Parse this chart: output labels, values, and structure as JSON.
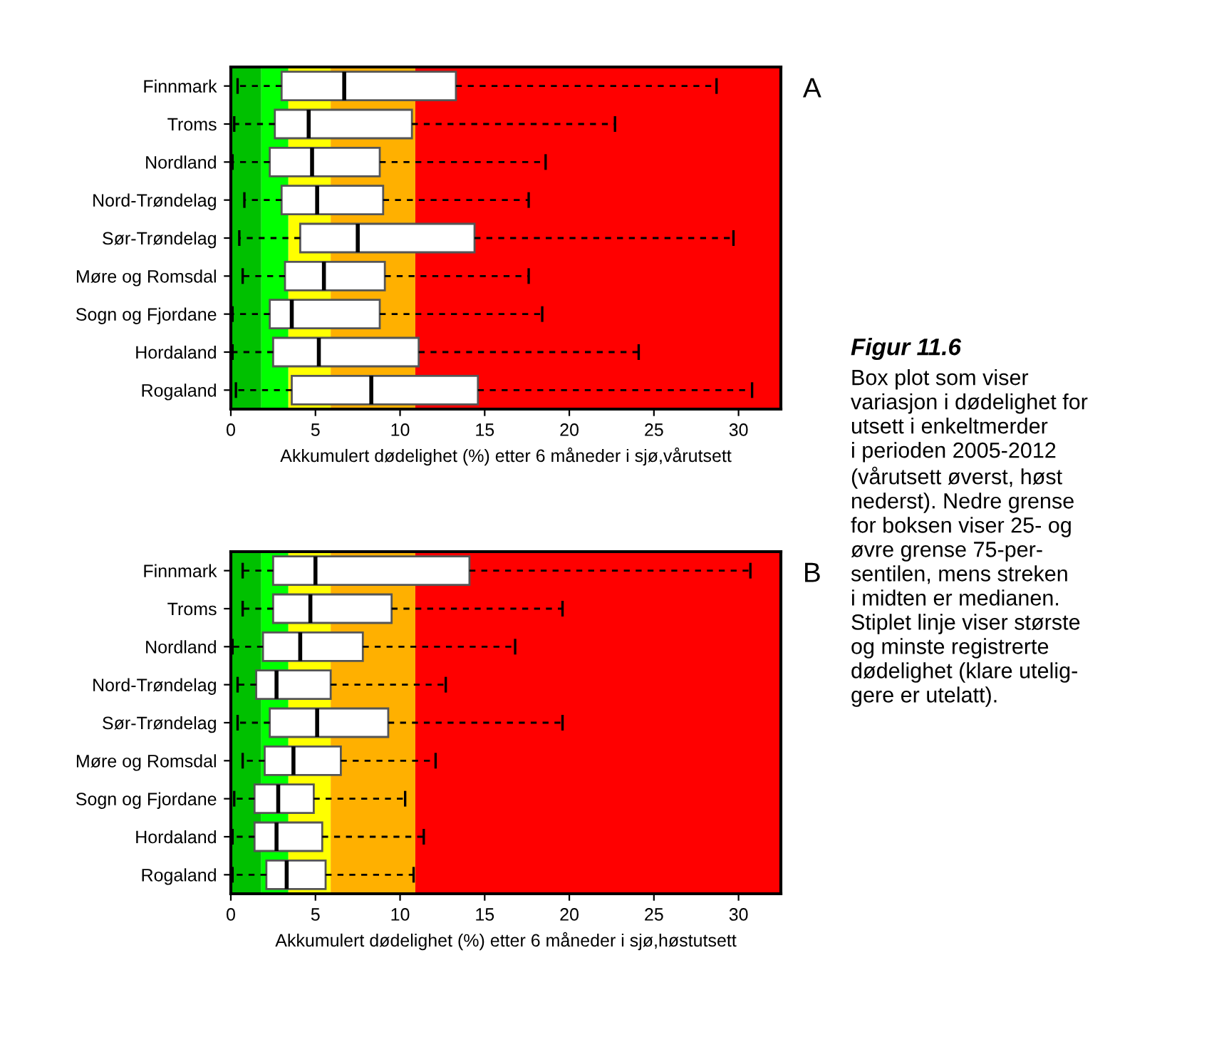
{
  "chart_data": [
    {
      "type": "box",
      "orientation": "horizontal",
      "xlabel": "Akkumulert dødelighet (%) etter 6 måneder i sjø,vårutsett",
      "categories": [
        "Finnmark",
        "Troms",
        "Nordland",
        "Nord-Trøndelag",
        "Sør-Trøndelag",
        "Møre og Romsdal",
        "Sogn og Fjordane",
        "Hordaland",
        "Rogaland"
      ],
      "boxes": [
        {
          "low": 0.4,
          "q1": 3.0,
          "median": 6.7,
          "q3": 13.3,
          "high": 28.7
        },
        {
          "low": 0.2,
          "q1": 2.6,
          "median": 4.6,
          "q3": 10.7,
          "high": 22.7
        },
        {
          "low": 0.1,
          "q1": 2.3,
          "median": 4.8,
          "q3": 8.8,
          "high": 18.6
        },
        {
          "low": 0.8,
          "q1": 3.0,
          "median": 5.1,
          "q3": 9.0,
          "high": 17.6
        },
        {
          "low": 0.5,
          "q1": 4.1,
          "median": 7.5,
          "q3": 14.4,
          "high": 29.7
        },
        {
          "low": 0.7,
          "q1": 3.2,
          "median": 5.5,
          "q3": 9.1,
          "high": 17.6
        },
        {
          "low": 0.1,
          "q1": 2.3,
          "median": 3.6,
          "q3": 8.8,
          "high": 18.4
        },
        {
          "low": 0.1,
          "q1": 2.5,
          "median": 5.2,
          "q3": 11.1,
          "high": 24.1
        },
        {
          "low": 0.3,
          "q1": 3.6,
          "median": 8.3,
          "q3": 14.6,
          "high": 30.8
        }
      ],
      "xlim": [
        0,
        32.5
      ],
      "xticks": [
        0,
        5,
        10,
        15,
        20,
        25,
        30
      ],
      "bands": [
        {
          "axis": "x",
          "from": 0,
          "to": 1.8,
          "color": "#00c000"
        },
        {
          "axis": "x",
          "from": 1.8,
          "to": 3.4,
          "color": "#00ff00"
        },
        {
          "axis": "x",
          "from": 3.4,
          "to": 5.9,
          "color": "#ffff00"
        },
        {
          "axis": "x",
          "from": 5.9,
          "to": 10.9,
          "color": "#ffb000"
        },
        {
          "axis": "x",
          "from": 10.9,
          "to": 32.5,
          "color": "#ff0000"
        }
      ],
      "annotations": [
        "A"
      ]
    },
    {
      "type": "box",
      "orientation": "horizontal",
      "xlabel": "Akkumulert dødelighet (%) etter 6 måneder i sjø,høstutsett",
      "categories": [
        "Finnmark",
        "Troms",
        "Nordland",
        "Nord-Trøndelag",
        "Sør-Trøndelag",
        "Møre og Romsdal",
        "Sogn og Fjordane",
        "Hordaland",
        "Rogaland"
      ],
      "boxes": [
        {
          "low": 0.7,
          "q1": 2.5,
          "median": 5.0,
          "q3": 14.1,
          "high": 30.7
        },
        {
          "low": 0.7,
          "q1": 2.5,
          "median": 4.7,
          "q3": 9.5,
          "high": 19.6
        },
        {
          "low": 0.1,
          "q1": 1.9,
          "median": 4.1,
          "q3": 7.8,
          "high": 16.8
        },
        {
          "low": 0.4,
          "q1": 1.5,
          "median": 2.7,
          "q3": 5.9,
          "high": 12.7
        },
        {
          "low": 0.4,
          "q1": 2.3,
          "median": 5.1,
          "q3": 9.3,
          "high": 19.6
        },
        {
          "low": 0.7,
          "q1": 2.0,
          "median": 3.7,
          "q3": 6.5,
          "high": 12.1
        },
        {
          "low": 0.2,
          "q1": 1.4,
          "median": 2.8,
          "q3": 4.9,
          "high": 10.3
        },
        {
          "low": 0.1,
          "q1": 1.4,
          "median": 2.7,
          "q3": 5.4,
          "high": 11.4
        },
        {
          "low": 0.1,
          "q1": 2.1,
          "median": 3.3,
          "q3": 5.6,
          "high": 10.8
        }
      ],
      "xlim": [
        0,
        32.5
      ],
      "xticks": [
        0,
        5,
        10,
        15,
        20,
        25,
        30
      ],
      "bands": [
        {
          "axis": "x",
          "from": 0,
          "to": 1.8,
          "color": "#00c000"
        },
        {
          "axis": "x",
          "from": 1.8,
          "to": 3.4,
          "color": "#00ff00"
        },
        {
          "axis": "x",
          "from": 3.4,
          "to": 5.9,
          "color": "#ffff00"
        },
        {
          "axis": "x",
          "from": 5.9,
          "to": 10.9,
          "color": "#ffb000"
        },
        {
          "axis": "x",
          "from": 10.9,
          "to": 32.5,
          "color": "#ff0000"
        }
      ],
      "annotations": [
        "B",
        "Figur 11.6",
        "Box plot som viser\nvariasjon i dødelighet for\nutsett i enkeltmerder\ni perioden 2005-2012\n(vårutsett øverst, høst\nnederst). Nedre grense\nfor boksen viser 25- og\nøvre grense 75-per-\nsentilen, mens streken\ni midten er medianen.\nStiplet linje viser største\nog minste registrerte\ndødelighet (klare utelig-\ngere er utelatt)."
      ]
    }
  ]
}
